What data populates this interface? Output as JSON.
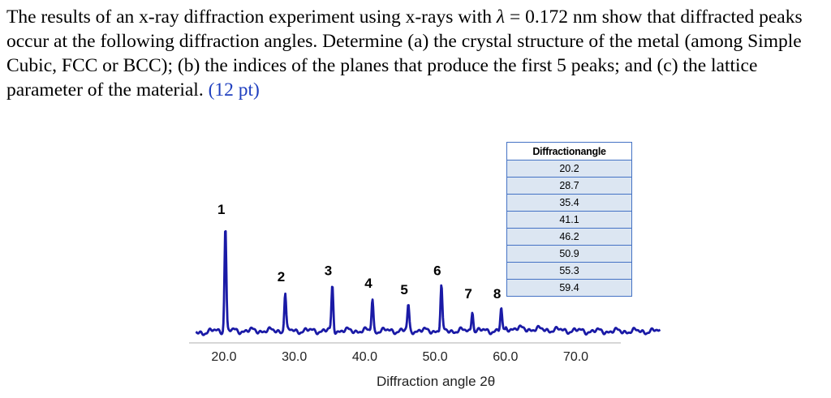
{
  "question": {
    "part1": "The results of an x-ray diffraction experiment using x-rays with ",
    "lambda_symbol": "λ",
    "part2": " = 0.172 nm show that diffracted peaks occur at the following diffraction angles. Determine (a) the crystal structure of the metal (among Simple Cubic, FCC or BCC); (b) the indices of the planes that produce the first 5 peaks; and (c) the lattice parameter of the material. ",
    "points": "(12 pt)"
  },
  "table": {
    "header": "Diffractionangle",
    "values": [
      "20.2",
      "28.7",
      "35.4",
      "41.1",
      "46.2",
      "50.9",
      "55.3",
      "59.4"
    ]
  },
  "colors": {
    "curve": "#1a1aa6",
    "points": "#1f3fbf",
    "table_border": "#4472c4",
    "table_fill": "#dce6f2"
  },
  "chart_data": {
    "type": "line",
    "xlabel": "Diffraction angle 2θ",
    "xlim": [
      16,
      82
    ],
    "xticks": [
      "20.0",
      "30.0",
      "40.0",
      "50.0",
      "60.0",
      "70.0"
    ],
    "peaks": [
      {
        "label": "1",
        "x": 20.2,
        "height": 1.0
      },
      {
        "label": "2",
        "x": 28.7,
        "height": 0.36
      },
      {
        "label": "3",
        "x": 35.4,
        "height": 0.42
      },
      {
        "label": "4",
        "x": 41.1,
        "height": 0.3
      },
      {
        "label": "5",
        "x": 46.2,
        "height": 0.24
      },
      {
        "label": "6",
        "x": 50.9,
        "height": 0.42
      },
      {
        "label": "7",
        "x": 55.3,
        "height": 0.2
      },
      {
        "label": "8",
        "x": 59.4,
        "height": 0.2
      }
    ]
  }
}
